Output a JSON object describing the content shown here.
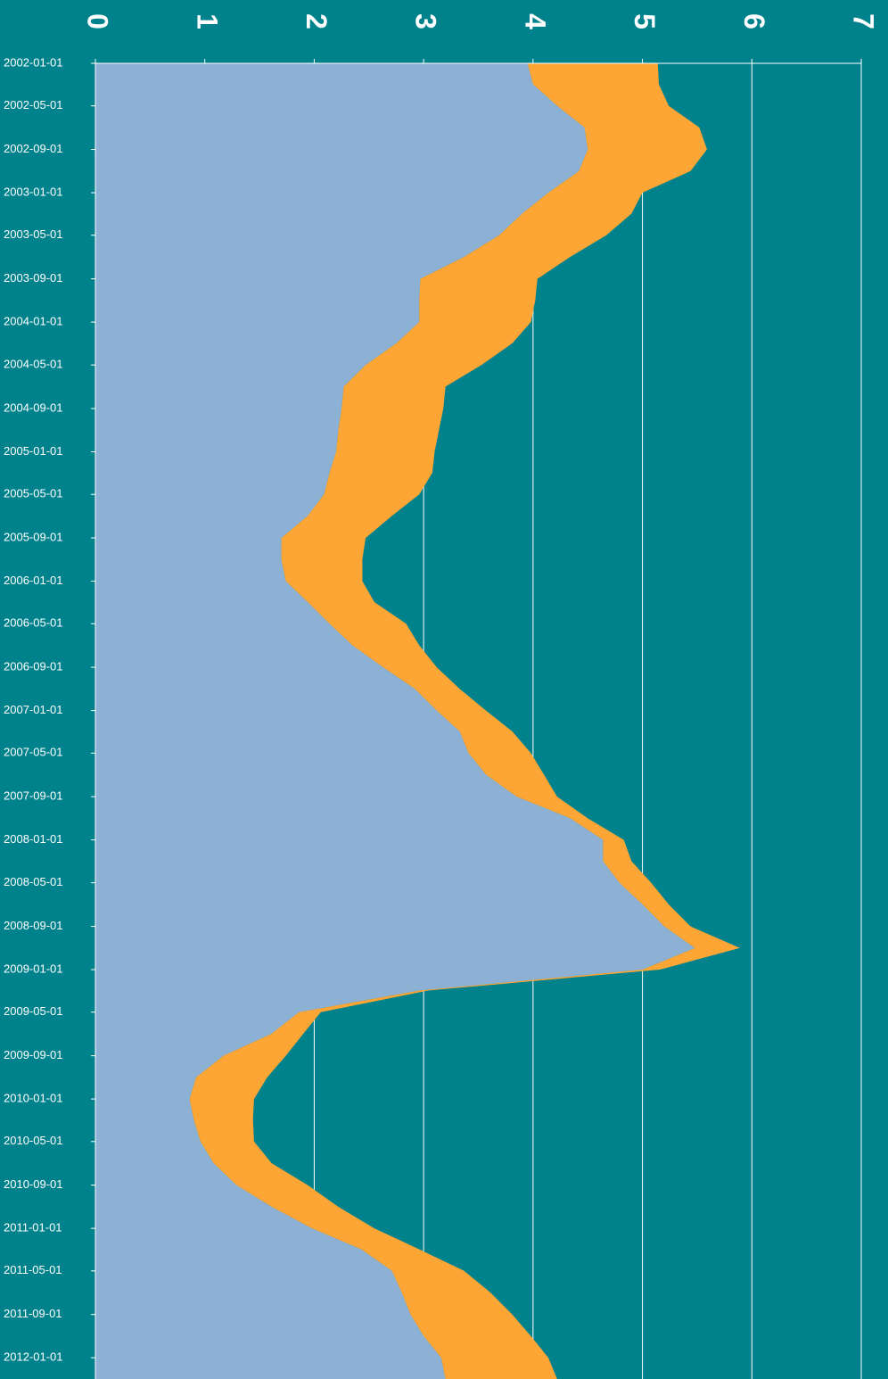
{
  "chart_data": {
    "type": "area",
    "stacked": true,
    "orientation": "horizontal",
    "x": [
      "2002-01-01",
      "2002-03-01",
      "2002-05-01",
      "2002-07-01",
      "2002-09-01",
      "2002-11-01",
      "2003-01-01",
      "2003-03-01",
      "2003-05-01",
      "2003-07-01",
      "2003-09-01",
      "2003-11-01",
      "2004-01-01",
      "2004-03-01",
      "2004-05-01",
      "2004-07-01",
      "2004-09-01",
      "2004-11-01",
      "2005-01-01",
      "2005-03-01",
      "2005-05-01",
      "2005-07-01",
      "2005-09-01",
      "2005-11-01",
      "2006-01-01",
      "2006-03-01",
      "2006-05-01",
      "2006-07-01",
      "2006-09-01",
      "2006-11-01",
      "2007-01-01",
      "2007-03-01",
      "2007-05-01",
      "2007-07-01",
      "2007-09-01",
      "2007-11-01",
      "2008-01-01",
      "2008-03-01",
      "2008-05-01",
      "2008-07-01",
      "2008-09-01",
      "2008-11-01",
      "2009-01-01",
      "2009-03-01",
      "2009-05-01",
      "2009-07-01",
      "2009-09-01",
      "2009-11-01",
      "2010-01-01",
      "2010-03-01",
      "2010-05-01",
      "2010-07-01",
      "2010-09-01",
      "2010-11-01",
      "2011-01-01",
      "2011-03-01",
      "2011-05-01",
      "2011-07-01",
      "2011-09-01",
      "2011-11-01",
      "2012-01-01",
      "2012-03-01"
    ],
    "series": [
      {
        "color": "#8cb1d4",
        "values": [
          3.95,
          4.0,
          4.22,
          4.47,
          4.5,
          4.42,
          4.14,
          3.9,
          3.69,
          3.37,
          2.97,
          2.96,
          2.96,
          2.75,
          2.47,
          2.27,
          2.25,
          2.22,
          2.2,
          2.14,
          2.09,
          1.94,
          1.7,
          1.7,
          1.74,
          1.94,
          2.14,
          2.35,
          2.63,
          2.92,
          3.12,
          3.33,
          3.41,
          3.57,
          3.85,
          4.34,
          4.64,
          4.64,
          4.79,
          5.0,
          5.2,
          5.48,
          5.0,
          2.96,
          1.86,
          1.61,
          1.17,
          0.92,
          0.86,
          0.9,
          0.96,
          1.08,
          1.29,
          1.61,
          1.98,
          2.43,
          2.71,
          2.8,
          2.88,
          3.0,
          3.16,
          3.2
        ]
      },
      {
        "color": "#fda535",
        "values": [
          1.19,
          1.15,
          1.02,
          1.05,
          1.09,
          1.02,
          0.86,
          1.0,
          0.98,
          0.97,
          1.07,
          1.06,
          1.02,
          1.06,
          1.06,
          0.93,
          0.93,
          0.92,
          0.9,
          0.94,
          0.87,
          0.77,
          0.77,
          0.74,
          0.7,
          0.61,
          0.7,
          0.61,
          0.49,
          0.41,
          0.45,
          0.48,
          0.57,
          0.53,
          0.37,
          0.16,
          0.19,
          0.26,
          0.29,
          0.24,
          0.24,
          0.41,
          0.16,
          0.08,
          0.2,
          0.29,
          0.57,
          0.65,
          0.59,
          0.54,
          0.49,
          0.53,
          0.65,
          0.61,
          0.57,
          0.53,
          0.66,
          0.81,
          0.93,
          0.98,
          0.98,
          1.02
        ]
      }
    ],
    "xlim": [
      "2002-01-01",
      "2012-03-01"
    ],
    "xticks": [
      "2002-01-01",
      "2002-05-01",
      "2002-09-01",
      "2003-01-01",
      "2003-05-01",
      "2003-09-01",
      "2004-01-01",
      "2004-05-01",
      "2004-09-01",
      "2005-01-01",
      "2005-05-01",
      "2005-09-01",
      "2006-01-01",
      "2006-05-01",
      "2006-09-01",
      "2007-01-01",
      "2007-05-01",
      "2007-09-01",
      "2008-01-01",
      "2008-05-01",
      "2008-09-01",
      "2009-01-01",
      "2009-05-01",
      "2009-09-01",
      "2010-01-01",
      "2010-05-01",
      "2010-09-01",
      "2011-01-01",
      "2011-05-01",
      "2011-09-01",
      "2012-01-01"
    ],
    "ylim": [
      0,
      7
    ],
    "yticks": [
      0,
      1,
      2,
      3,
      4,
      5,
      6,
      7
    ],
    "grid": true
  }
}
